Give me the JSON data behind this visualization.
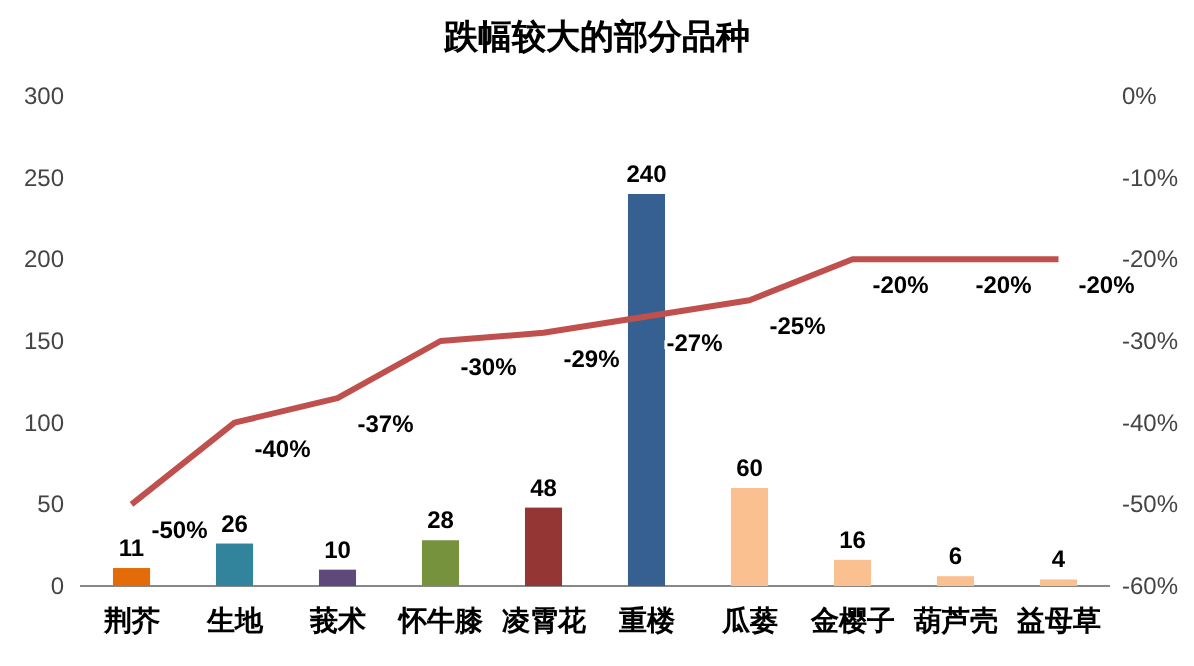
{
  "chart_data": {
    "type": "bar",
    "title": "跌幅较大的部分品种",
    "categories": [
      "荆芥",
      "生地",
      "莪术",
      "怀牛膝",
      "凌霄花",
      "重楼",
      "瓜蒌",
      "金樱子",
      "葫芦壳",
      "益母草"
    ],
    "series": [
      {
        "colors": [
          "#e36c09",
          "#31849b",
          "#5f497a",
          "#76923c",
          "#943634",
          "#366092",
          "#fac090",
          "#fac090",
          "#fac090",
          "#fac090"
        ],
        "values": [
          11,
          26,
          10,
          28,
          48,
          240,
          60,
          16,
          6,
          4
        ],
        "value_labels": [
          "11",
          "26",
          "10",
          "28",
          "48",
          "240",
          "60",
          "16",
          "6",
          "4"
        ]
      },
      {
        "type": "line",
        "axis": "y2",
        "color": "#c0504d",
        "values": [
          -50,
          -40,
          -37,
          -30,
          -29,
          -27,
          -25,
          -20,
          -20,
          -20
        ],
        "value_labels": [
          "-50%",
          "-40%",
          "-37%",
          "-30%",
          "-29%",
          "-27%",
          "-25%",
          "-20%",
          "-20%",
          "-20%"
        ]
      }
    ],
    "ylim": [
      0,
      300
    ],
    "yticks": [
      0,
      50,
      100,
      150,
      200,
      250,
      300
    ],
    "y2lim": [
      -60,
      0
    ],
    "y2ticks": [
      {
        "value": -60,
        "label": "-60%"
      },
      {
        "value": -50,
        "label": "-50%"
      },
      {
        "value": -40,
        "label": "-40%"
      },
      {
        "value": -30,
        "label": "-30%"
      },
      {
        "value": -20,
        "label": "-20%"
      },
      {
        "value": -10,
        "label": "-10%"
      },
      {
        "value": 0,
        "label": "0%"
      }
    ]
  }
}
